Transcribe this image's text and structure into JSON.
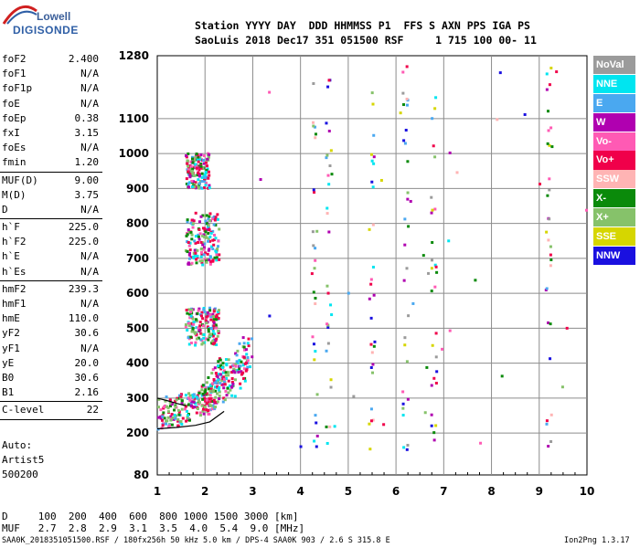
{
  "logo": {
    "top": "Lowell",
    "bottom": "DIGISONDE"
  },
  "header": {
    "line1": "Station YYYY DAY  DDD HHMMSS P1  FFS S AXN PPS IGA PS",
    "line2": "SaoLuis 2018 Dec17 351 051500 RSF     1 715 100 00- 11"
  },
  "params": [
    {
      "label": "foF2",
      "value": "2.400"
    },
    {
      "label": "foF1",
      "value": "N/A"
    },
    {
      "label": "foF1p",
      "value": "N/A"
    },
    {
      "label": "foE",
      "value": "N/A"
    },
    {
      "label": "foEp",
      "value": "0.38"
    },
    {
      "label": "fxI",
      "value": "3.15"
    },
    {
      "label": "foEs",
      "value": "N/A"
    },
    {
      "label": "fmin",
      "value": "1.20"
    },
    {
      "label": "MUF(D)",
      "value": "9.00",
      "divider": true
    },
    {
      "label": "M(D)",
      "value": "3.75"
    },
    {
      "label": "D",
      "value": "N/A"
    },
    {
      "label": "h`F",
      "value": "225.0",
      "divider": true
    },
    {
      "label": "h`F2",
      "value": "225.0"
    },
    {
      "label": "h`E",
      "value": "N/A"
    },
    {
      "label": "h`Es",
      "value": "N/A"
    },
    {
      "label": "hmF2",
      "value": "239.3",
      "divider": true
    },
    {
      "label": "hmF1",
      "value": "N/A"
    },
    {
      "label": "hmE",
      "value": "110.0"
    },
    {
      "label": "yF2",
      "value": "30.6"
    },
    {
      "label": "yF1",
      "value": "N/A"
    },
    {
      "label": "yE",
      "value": "20.0"
    },
    {
      "label": "B0",
      "value": "30.6"
    },
    {
      "label": "B1",
      "value": "2.16"
    },
    {
      "label": "C-level",
      "value": "22",
      "divider": true
    }
  ],
  "auto": {
    "line1": "Auto:",
    "line2": "Artist5",
    "line3": "500200"
  },
  "legend": [
    {
      "name": "NoVal",
      "color": "#9b9b9b"
    },
    {
      "name": "NNE",
      "color": "#00e5f0"
    },
    {
      "name": "E",
      "color": "#4aa8f0"
    },
    {
      "name": "W",
      "color": "#b000b0"
    },
    {
      "name": "Vo-",
      "color": "#ff5ab4"
    },
    {
      "name": "Vo+",
      "color": "#f0004a"
    },
    {
      "name": "SSW",
      "color": "#ffb4b4"
    },
    {
      "name": "X-",
      "color": "#0a8a0a"
    },
    {
      "name": "X+",
      "color": "#86c26a"
    },
    {
      "name": "SSE",
      "color": "#d6d600"
    },
    {
      "name": "NNW",
      "color": "#1a10e0"
    }
  ],
  "footer": {
    "line1": "D     100  200  400  600  800 1000 1500 3000 [km]",
    "line2": "MUF   2.7  2.8  2.9  3.1  3.5  4.0  5.4  9.0 [MHz]",
    "bottom_left": "SAA0K_2018351051500.RSF / 180fx256h 50 kHz 5.0 km / DPS-4 SAA0K 903 / 2.6 S 315.8 E",
    "bottom_right": "Ion2Png 1.3.17"
  },
  "chart_data": {
    "type": "scatter",
    "x_ticks": [
      "1",
      "2",
      "3",
      "4",
      "5",
      "6",
      "7",
      "8",
      "9",
      "10"
    ],
    "y_ticks": [
      "80",
      "200",
      "300",
      "400",
      "500",
      "600",
      "700",
      "800",
      "900",
      "1000",
      "1100",
      "1280"
    ],
    "xlim": [
      1,
      10
    ],
    "ylim": [
      80,
      1280
    ],
    "xlabel": "",
    "ylabel": "",
    "grid": true,
    "trace_series": [
      {
        "color": "Vo+/Vo- (ordinary)",
        "x": [
          1.0,
          1.2,
          1.4,
          1.6,
          1.8,
          2.0,
          2.1,
          2.2,
          2.3,
          2.4
        ],
        "y": [
          228,
          232,
          236,
          242,
          250,
          262,
          275,
          292,
          320,
          360
        ]
      },
      {
        "color": "X+ (extraordinary)",
        "x": [
          2.4,
          2.6,
          2.8,
          2.9
        ],
        "y": [
          300,
          330,
          380,
          410
        ]
      }
    ],
    "multihop_clusters": [
      {
        "x_range": [
          1.6,
          2.3
        ],
        "y_range": [
          450,
          560
        ]
      },
      {
        "x_range": [
          1.6,
          2.3
        ],
        "y_range": [
          680,
          830
        ]
      },
      {
        "x_range": [
          1.6,
          2.1
        ],
        "y_range": [
          900,
          1000
        ]
      }
    ],
    "profile_curves": [
      {
        "x": [
          1.0,
          1.4,
          1.8,
          2.1,
          2.4
        ],
        "y": [
          212,
          216,
          222,
          232,
          262
        ]
      },
      {
        "x": [
          1.0,
          1.2,
          1.4,
          1.6
        ],
        "y": [
          300,
          293,
          285,
          278
        ]
      }
    ]
  }
}
